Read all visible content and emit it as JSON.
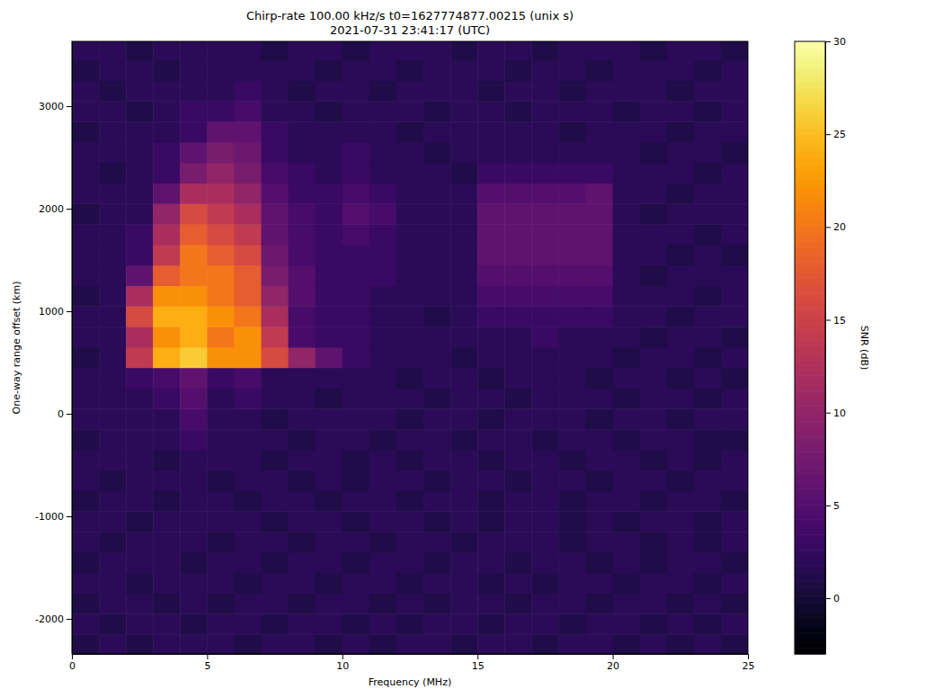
{
  "chart_data": {
    "type": "heatmap",
    "title": "Chirp-rate 100.00 kHz/s t0=1627774877.00215 (unix s)",
    "subtitle": "2021-07-31 23:41:17 (UTC)",
    "x_label": "Frequency (MHz)",
    "y_label": "One-way range offset (km)",
    "xlim": [
      0,
      25
    ],
    "ylim": [
      -2342,
      3632
    ],
    "xticks": [
      0,
      5,
      10,
      15,
      20,
      25
    ],
    "yticks": [
      -2000,
      -1000,
      0,
      1000,
      2000,
      3000
    ],
    "color": "inferno",
    "x": [
      0.5,
      1.5,
      2.5,
      3.5,
      4.5,
      5.5,
      6.5,
      7.5,
      8.5,
      9.5,
      10.5,
      11.5,
      12.5,
      13.5,
      14.5,
      15.5,
      16.5,
      17.5,
      18.5,
      19.5,
      20.5,
      21.5,
      22.5,
      23.5,
      24.5
    ],
    "y": [
      -2250,
      -2050,
      -1850,
      -1650,
      -1450,
      -1250,
      -1050,
      -850,
      -650,
      -450,
      -250,
      -50,
      150,
      350,
      550,
      750,
      950,
      1150,
      1350,
      1550,
      1750,
      1950,
      2150,
      2350,
      2550,
      2750,
      2950,
      3150,
      3350,
      3550
    ],
    "z": [
      [
        1,
        2,
        1,
        2,
        2,
        2,
        1,
        2,
        2,
        1,
        2,
        1,
        2,
        2,
        1,
        2,
        2,
        1,
        2,
        2,
        1,
        2,
        1,
        2,
        1
      ],
      [
        2,
        1,
        2,
        2,
        1,
        2,
        2,
        1,
        2,
        2,
        1,
        2,
        1,
        2,
        2,
        1,
        2,
        2,
        1,
        2,
        2,
        1,
        2,
        1,
        2
      ],
      [
        1,
        2,
        2,
        1,
        2,
        1,
        2,
        2,
        1,
        2,
        2,
        1,
        2,
        1,
        2,
        2,
        1,
        2,
        2,
        1,
        2,
        2,
        1,
        2,
        1
      ],
      [
        2,
        2,
        1,
        2,
        2,
        2,
        1,
        2,
        2,
        1,
        2,
        2,
        1,
        2,
        2,
        1,
        2,
        1,
        2,
        2,
        1,
        2,
        2,
        1,
        2
      ],
      [
        1,
        2,
        2,
        2,
        1,
        2,
        2,
        1,
        2,
        2,
        1,
        2,
        2,
        1,
        2,
        2,
        1,
        2,
        2,
        1,
        2,
        1,
        2,
        2,
        1
      ],
      [
        2,
        1,
        2,
        2,
        2,
        1,
        2,
        2,
        1,
        2,
        2,
        1,
        2,
        2,
        1,
        2,
        2,
        2,
        1,
        2,
        2,
        1,
        2,
        1,
        2
      ],
      [
        2,
        2,
        1,
        2,
        2,
        2,
        2,
        1,
        2,
        2,
        1,
        2,
        2,
        1,
        2,
        1,
        2,
        2,
        1,
        2,
        1,
        2,
        2,
        1,
        2
      ],
      [
        1,
        2,
        2,
        1,
        2,
        2,
        1,
        2,
        2,
        1,
        2,
        2,
        1,
        2,
        2,
        1,
        2,
        2,
        1,
        2,
        2,
        1,
        2,
        2,
        1
      ],
      [
        2,
        1,
        2,
        2,
        2,
        1,
        2,
        2,
        1,
        2,
        1,
        2,
        2,
        1,
        2,
        2,
        1,
        2,
        2,
        1,
        2,
        2,
        1,
        2,
        2
      ],
      [
        2,
        2,
        2,
        1,
        2,
        2,
        2,
        1,
        2,
        2,
        1,
        2,
        1,
        2,
        2,
        1,
        2,
        2,
        1,
        2,
        2,
        1,
        2,
        1,
        2
      ],
      [
        1,
        2,
        2,
        2,
        3,
        2,
        2,
        2,
        1,
        2,
        2,
        1,
        2,
        2,
        1,
        2,
        2,
        1,
        2,
        2,
        1,
        2,
        2,
        1,
        1
      ],
      [
        2,
        2,
        2,
        2,
        4,
        2,
        2,
        1,
        2,
        2,
        2,
        2,
        1,
        2,
        2,
        1,
        2,
        2,
        2,
        1,
        2,
        2,
        1,
        2,
        2
      ],
      [
        2,
        2,
        2,
        3,
        5,
        2,
        3,
        2,
        2,
        1,
        2,
        2,
        2,
        1,
        2,
        2,
        1,
        2,
        2,
        2,
        1,
        2,
        2,
        1,
        2
      ],
      [
        2,
        2,
        3,
        4,
        6,
        3,
        4,
        2,
        2,
        2,
        2,
        2,
        1,
        2,
        2,
        1,
        2,
        2,
        2,
        1,
        2,
        2,
        1,
        2,
        1
      ],
      [
        1,
        2,
        14,
        24,
        26,
        22,
        22,
        16,
        10,
        6,
        3,
        2,
        2,
        2,
        1,
        2,
        2,
        2,
        2,
        2,
        1,
        2,
        2,
        1,
        2
      ],
      [
        2,
        2,
        12,
        22,
        24,
        20,
        22,
        14,
        4,
        3,
        3,
        2,
        2,
        2,
        2,
        2,
        2,
        3,
        2,
        2,
        2,
        1,
        2,
        2,
        1
      ],
      [
        2,
        2,
        16,
        24,
        24,
        22,
        20,
        12,
        4,
        3,
        3,
        2,
        2,
        1,
        2,
        3,
        3,
        3,
        3,
        3,
        2,
        2,
        1,
        2,
        2
      ],
      [
        1,
        2,
        12,
        22,
        22,
        20,
        18,
        10,
        5,
        3,
        3,
        2,
        2,
        2,
        2,
        4,
        4,
        4,
        4,
        4,
        2,
        2,
        2,
        1,
        2
      ],
      [
        2,
        2,
        6,
        18,
        20,
        20,
        18,
        8,
        5,
        3,
        3,
        3,
        2,
        2,
        2,
        5,
        5,
        5,
        5,
        5,
        2,
        1,
        2,
        2,
        2
      ],
      [
        2,
        2,
        3,
        14,
        20,
        18,
        16,
        7,
        4,
        3,
        3,
        3,
        2,
        2,
        2,
        6,
        6,
        6,
        6,
        6,
        2,
        2,
        1,
        2,
        1
      ],
      [
        2,
        2,
        3,
        12,
        18,
        16,
        14,
        6,
        4,
        3,
        4,
        3,
        2,
        2,
        2,
        6,
        6,
        6,
        6,
        6,
        2,
        2,
        2,
        1,
        2
      ],
      [
        1,
        2,
        2,
        10,
        16,
        14,
        12,
        6,
        4,
        3,
        5,
        4,
        2,
        2,
        2,
        6,
        6,
        6,
        6,
        6,
        2,
        1,
        2,
        2,
        2
      ],
      [
        2,
        2,
        2,
        6,
        12,
        12,
        10,
        5,
        3,
        3,
        4,
        3,
        2,
        2,
        2,
        5,
        5,
        5,
        5,
        6,
        2,
        2,
        1,
        2,
        2
      ],
      [
        2,
        1,
        2,
        3,
        8,
        10,
        8,
        4,
        3,
        2,
        3,
        2,
        2,
        2,
        1,
        3,
        3,
        3,
        3,
        3,
        2,
        2,
        2,
        1,
        2
      ],
      [
        2,
        2,
        2,
        3,
        6,
        8,
        7,
        3,
        2,
        2,
        3,
        2,
        2,
        1,
        2,
        2,
        2,
        2,
        2,
        2,
        2,
        1,
        2,
        2,
        1
      ],
      [
        1,
        2,
        2,
        2,
        3,
        6,
        6,
        3,
        2,
        2,
        2,
        2,
        1,
        2,
        2,
        2,
        2,
        2,
        1,
        2,
        2,
        2,
        1,
        2,
        2
      ],
      [
        2,
        2,
        1,
        2,
        3,
        3,
        4,
        2,
        2,
        1,
        2,
        2,
        2,
        1,
        2,
        2,
        1,
        2,
        2,
        2,
        1,
        2,
        2,
        1,
        2
      ],
      [
        2,
        1,
        2,
        2,
        2,
        2,
        3,
        2,
        1,
        2,
        2,
        1,
        2,
        2,
        2,
        1,
        2,
        2,
        1,
        2,
        2,
        2,
        1,
        2,
        2
      ],
      [
        1,
        2,
        2,
        1,
        2,
        2,
        2,
        2,
        2,
        1,
        2,
        2,
        1,
        2,
        2,
        2,
        1,
        2,
        2,
        1,
        2,
        2,
        2,
        1,
        2
      ],
      [
        2,
        2,
        1,
        2,
        2,
        2,
        2,
        1,
        2,
        2,
        1,
        2,
        2,
        2,
        1,
        2,
        2,
        1,
        2,
        2,
        2,
        1,
        2,
        2,
        1
      ]
    ],
    "colorbar": {
      "label": "SNR (dB)",
      "range": [
        -3,
        30
      ],
      "ticks": [
        0,
        5,
        10,
        15,
        20,
        25,
        30
      ]
    }
  }
}
